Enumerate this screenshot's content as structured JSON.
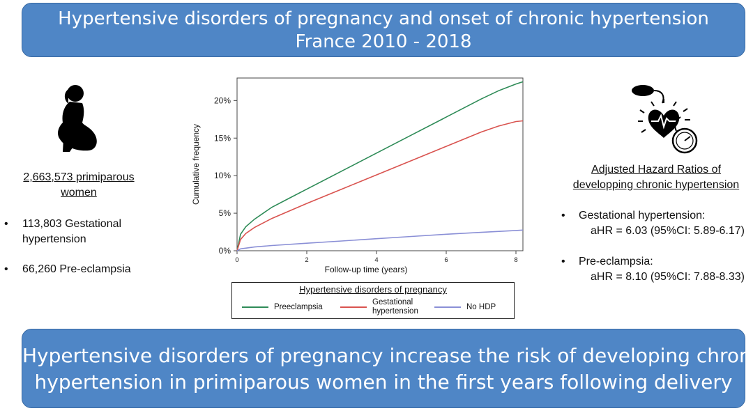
{
  "header": {
    "line1": "Hypertensive disorders of pregnancy and onset of chronic hypertension",
    "line2": "France 2010 - 2018"
  },
  "left": {
    "population_line1": "2,663,573 primiparous",
    "population_line2": "women",
    "bullets": [
      {
        "line1": "113,803 Gestational",
        "line2": "hypertension"
      },
      {
        "line1": "66,260  Pre-eclampsia"
      }
    ],
    "bullet_symbol": "•"
  },
  "right": {
    "title_line1": "Adjusted Hazard Ratios of",
    "title_line2": "developping chronic hypertension",
    "items": [
      {
        "label": "Gestational hypertension:",
        "value": "aHR = 6.03 (95%CI: 5.89-6.17)"
      },
      {
        "label": "Pre-eclampsia:",
        "value": "aHR = 8.10 (95%CI: 7.88-8.33)"
      }
    ]
  },
  "footer": {
    "line1": "Hypertensive disorders of pregnancy increase the risk of developing chronic",
    "line2": "hypertension in primiparous women in the first years following delivery"
  },
  "icons": {
    "woman": "pregnant-woman-icon",
    "heart": "heart-blood-pressure-icon"
  },
  "colors": {
    "banner": "#4f86c6",
    "preeclampsia": "#2e8b57",
    "gestational": "#d9534f",
    "no_hdp": "#8a8fd6"
  },
  "chart_data": {
    "type": "line",
    "title": "",
    "xlabel": "Follow-up time (years)",
    "ylabel": "Cumulative frequency",
    "xlim": [
      0,
      8.2
    ],
    "ylim": [
      0,
      23
    ],
    "x_ticks": [
      0,
      2,
      4,
      6,
      8
    ],
    "x_tick_labels": [
      "0",
      "2",
      "4",
      "6",
      "8"
    ],
    "y_ticks": [
      0,
      5,
      10,
      15,
      20
    ],
    "y_tick_labels": [
      "0%",
      "5%",
      "10%",
      "15%",
      "20%"
    ],
    "grid": false,
    "legend": {
      "title": "Hypertensive disorders of pregnancy",
      "position": "below"
    },
    "series": [
      {
        "name": "Preeclampsia",
        "x": [
          0,
          0.1,
          0.25,
          0.5,
          1,
          1.5,
          2,
          3,
          4,
          5,
          6,
          7,
          7.5,
          8,
          8.2
        ],
        "y": [
          0,
          2.2,
          3.2,
          4.2,
          5.8,
          7.0,
          8.2,
          10.6,
          13.0,
          15.4,
          17.8,
          20.2,
          21.3,
          22.2,
          22.5
        ]
      },
      {
        "name": "Gestational hypertension",
        "label_line1": "Gestational",
        "label_line2": "hypertension",
        "x": [
          0,
          0.1,
          0.25,
          0.5,
          1,
          1.5,
          2,
          3,
          4,
          5,
          6,
          7,
          7.5,
          8,
          8.2
        ],
        "y": [
          0,
          1.5,
          2.3,
          3.1,
          4.3,
          5.3,
          6.3,
          8.2,
          10.1,
          12.0,
          13.9,
          15.8,
          16.6,
          17.2,
          17.3
        ]
      },
      {
        "name": "No HDP",
        "x": [
          0,
          0.1,
          0.5,
          1,
          2,
          3,
          4,
          5,
          6,
          7,
          8,
          8.2
        ],
        "y": [
          0,
          0.25,
          0.5,
          0.7,
          1.0,
          1.3,
          1.6,
          1.9,
          2.2,
          2.45,
          2.7,
          2.75
        ]
      }
    ]
  }
}
